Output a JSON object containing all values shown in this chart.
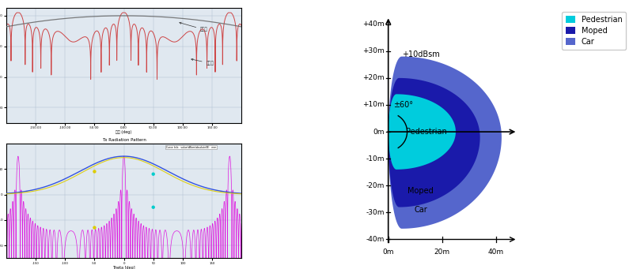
{
  "fig_width": 8.0,
  "fig_height": 3.41,
  "bg_color": "#ffffff",
  "right_panel": {
    "title_text": "+10dBsm",
    "angle_text": "±60°",
    "pedestrian_color": "#00ccdd",
    "moped_color": "#1a1aaa",
    "car_color": "#5566cc",
    "legend_items": [
      {
        "label": "Pedestrian",
        "color": "#00ccdd"
      },
      {
        "label": "Moped",
        "color": "#1a1aaa"
      },
      {
        "label": "Car",
        "color": "#5566cc"
      }
    ]
  }
}
